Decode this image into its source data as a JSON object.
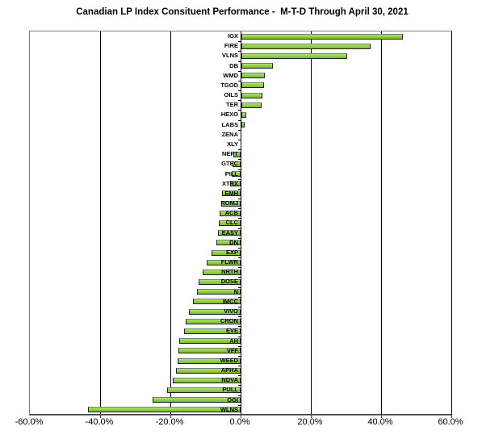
{
  "window": {
    "background_color": "#ffffff"
  },
  "chart_title": "Canadian LP Index Consituent Performance -  M-T-D Through April 30, 2021",
  "chart_data": {
    "type": "bar",
    "orientation": "horizontal",
    "title": "Canadian LP Index Consituent Performance -  M-T-D Through April 30, 2021",
    "xlabel": "",
    "ylabel": "",
    "xlim": [
      -60,
      60
    ],
    "x_ticks": [
      -60,
      -40,
      -20,
      0,
      20,
      40,
      60
    ],
    "x_tick_labels": [
      "-60.0%",
      "-40.0%",
      "-20.0%",
      "0.0%",
      "20.0%",
      "40.0%",
      "60.0%"
    ],
    "grid": true,
    "legend": "none",
    "value_unit": "percent",
    "bar_fill_color": "#92D050",
    "bar_border_color": "#222222",
    "gridline_color": "#000000",
    "frame_color": "#808080",
    "categories": [
      "IGX",
      "FIRE",
      "VLNS",
      "DB",
      "WMD",
      "TGOD",
      "OILS",
      "TER",
      "HEXO",
      "LABS",
      "ZENA",
      "XLY",
      "NEPT",
      "GTEC",
      "PILL",
      "XTRX",
      "EMH",
      "ROMJ",
      "ACB",
      "CLC",
      "EASY",
      "DN",
      "EXP",
      "FLWR",
      "NRTH",
      "DOSE",
      "N",
      "IMCC",
      "VIVO",
      "CRON",
      "EVE",
      "AH",
      "VFF",
      "WEED",
      "APHA",
      "NDVA",
      "PULL",
      "OGI",
      "WLNS"
    ],
    "values": [
      46.3,
      37.1,
      30.4,
      9.3,
      7.0,
      6.6,
      6.3,
      6.0,
      1.5,
      1.2,
      0.0,
      0.0,
      -2.0,
      -2.4,
      -2.6,
      -3.0,
      -5.3,
      -5.6,
      -5.9,
      -6.1,
      -6.4,
      -6.9,
      -8.3,
      -9.7,
      -10.9,
      -12.0,
      -12.4,
      -13.6,
      -14.7,
      -15.7,
      -16.1,
      -17.5,
      -17.6,
      -18.0,
      -18.3,
      -19.2,
      -21.0,
      -25.1,
      -43.5
    ]
  }
}
